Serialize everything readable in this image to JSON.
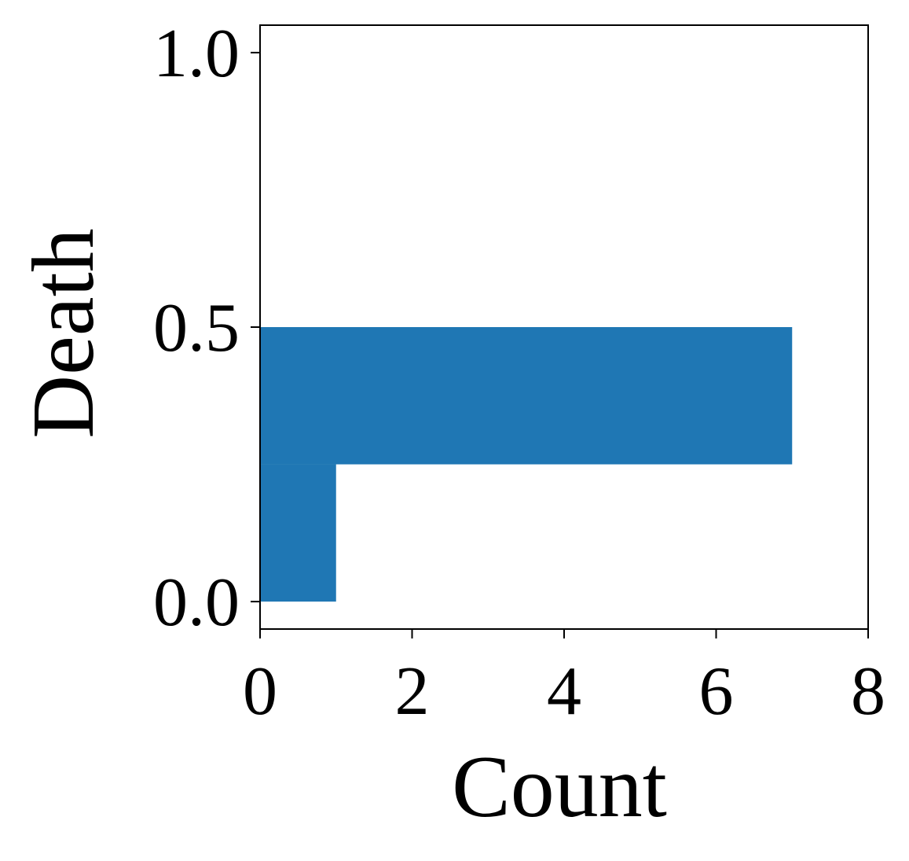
{
  "chart_data": {
    "type": "histogram",
    "orientation": "horizontal",
    "xlabel": "Count",
    "ylabel": "Death",
    "bins": [
      0,
      0.25,
      0.5
    ],
    "values": [
      1,
      7
    ],
    "color": "#1f77b4",
    "xlim": [
      0,
      8
    ],
    "xticks": [
      0,
      2,
      4,
      6,
      8
    ],
    "ylim": [
      -0.05,
      1.05
    ],
    "yticks": [
      {
        "value": 0,
        "label": "0.0"
      },
      0.5,
      {
        "value": 1,
        "label": "1.0"
      }
    ],
    "grid": false
  }
}
